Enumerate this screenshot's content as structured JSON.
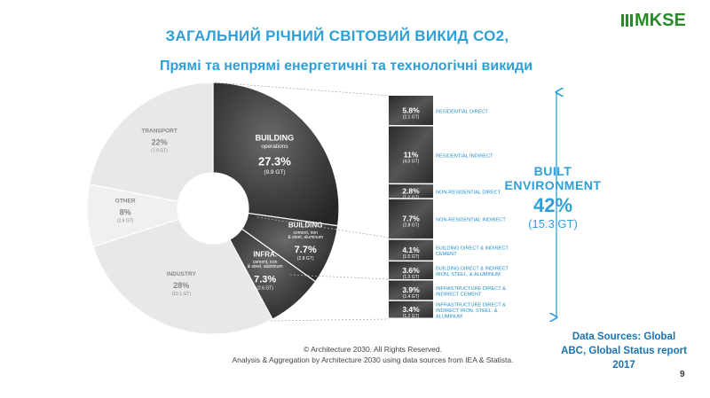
{
  "title": "ЗАГАЛЬНИЙ РІЧНИЙ СВІТОВИЙ ВИКИД СО2,",
  "subtitle": "Прямі та непрямі енергетичні та технологічні викиди",
  "logo": "MKSE",
  "bracket": {
    "line1": "BUILT",
    "line2": "ENVIRONMENT",
    "pct": "42%",
    "gt": "(15.3 GT)"
  },
  "credit": {
    "line1": "© Architecture 2030. All Rights Reserved.",
    "line2": "Analysis & Aggregation by Architecture 2030 using data sources from IEA & Statista."
  },
  "sources": {
    "line1": "Data Sources: Global",
    "line2": "ABC, Global Status report",
    "line3": "2017"
  },
  "page_number": "9",
  "colors": {
    "accent": "#2e9fd8",
    "dark": "#3a3a3a",
    "light": "#ececec",
    "logo": "#2a8a2a"
  },
  "chart_data": [
    {
      "type": "pie",
      "variant": "donut",
      "slices": [
        {
          "label": "BUILDING",
          "sub": "operations",
          "pct": "27.3%",
          "gt": "(9.9 GT)",
          "value": 27.3
        },
        {
          "label": "BUILDING",
          "sub": "cement, iron & steel, aluminum",
          "pct": "7.7%",
          "gt": "(2.8 GT)",
          "value": 7.7
        },
        {
          "label": "INFRA.",
          "sub": "cement, iron & steel, aluminum",
          "pct": "7.3%",
          "gt": "(2.6 GT)",
          "value": 7.3
        },
        {
          "label": "INDUSTRY",
          "sub": "",
          "pct": "28%",
          "gt": "(10.1 GT)",
          "value": 28
        },
        {
          "label": "OTHER",
          "sub": "",
          "pct": "8%",
          "gt": "(2.9 GT)",
          "value": 8
        },
        {
          "label": "TRANSPORT",
          "sub": "",
          "pct": "22%",
          "gt": "(7.9 GT)",
          "value": 22
        }
      ]
    },
    {
      "type": "bar",
      "variant": "stacked-column",
      "segments": [
        {
          "pct": "5.8%",
          "gt": "(2.1 GT)",
          "label": "RESIDENTIAL DIRECT",
          "value": 5.8
        },
        {
          "pct": "11%",
          "gt": "(4.0 GT)",
          "label": "RESIDENTIAL INDIRECT",
          "value": 11
        },
        {
          "pct": "2.8%",
          "gt": "(1.0 GT)",
          "label": "NON-RESIDENTIAL DIRECT",
          "value": 2.8
        },
        {
          "pct": "7.7%",
          "gt": "(2.8 GT)",
          "label": "NON-RESIDENTIAL INDIRECT",
          "value": 7.7
        },
        {
          "pct": "4.1%",
          "gt": "(1.5 GT)",
          "label": "BUILDING DIRECT & INDIRECT CEMENT",
          "value": 4.1
        },
        {
          "pct": "3.6%",
          "gt": "(1.3 GT)",
          "label": "BUILDING DIRECT & INDIRECT IRON, STEEL, & ALUMINUM",
          "value": 3.6
        },
        {
          "pct": "3.9%",
          "gt": "(1.4 GT)",
          "label": "INFRASTRUCTURE DIRECT & INDIRECT CEMENT",
          "value": 3.9
        },
        {
          "pct": "3.4%",
          "gt": "(1.2 GT)",
          "label": "INFRASTRUCTURE DIRECT & INDIRECT IRON, STEEL, & ALUMINUM",
          "value": 3.4
        }
      ]
    }
  ]
}
